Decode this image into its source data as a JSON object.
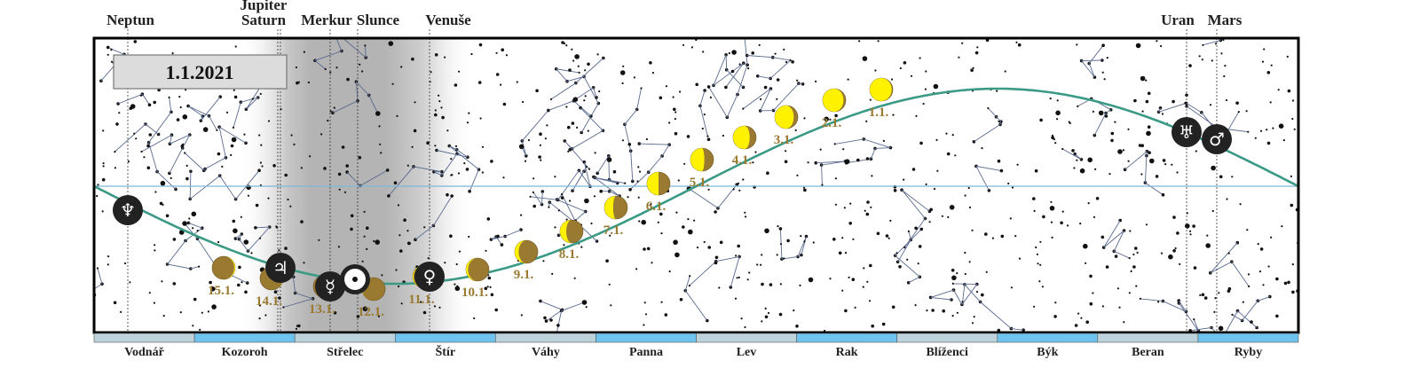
{
  "date_label": "1.1.2021",
  "colors": {
    "ecliptic": "#3a9a86",
    "equator": "#7fb6d6",
    "moon_lit": "#fff200",
    "moon_dark": "#9a7a30",
    "zodiac_light": "#bcd3dc",
    "zodiac_blue": "#6fc3ef",
    "planet_disc": "#222222"
  },
  "planets": [
    {
      "name": "Neptun",
      "symbol": "♆",
      "icon": "neptune-icon"
    },
    {
      "name": "Saturn",
      "symbol": "",
      "icon": "saturn-marker"
    },
    {
      "name": "Jupiter",
      "symbol": "♃",
      "icon": "jupiter-icon"
    },
    {
      "name": "Merkur",
      "symbol": "☿",
      "icon": "mercury-icon"
    },
    {
      "name": "Slunce",
      "symbol": "☉",
      "icon": "sun-icon"
    },
    {
      "name": "Venuše",
      "symbol": "♀",
      "icon": "venus-icon"
    },
    {
      "name": "Uran",
      "symbol": "♅",
      "icon": "uranus-icon"
    },
    {
      "name": "Mars",
      "symbol": "♂",
      "icon": "mars-icon"
    }
  ],
  "moon": [
    {
      "date": "1.1.",
      "illuminated": 0.95,
      "lit_side": "left"
    },
    {
      "date": "2.1.",
      "illuminated": 0.9,
      "lit_side": "left"
    },
    {
      "date": "3.1.",
      "illuminated": 0.82,
      "lit_side": "left"
    },
    {
      "date": "4.1.",
      "illuminated": 0.72,
      "lit_side": "left"
    },
    {
      "date": "5.1.",
      "illuminated": 0.6,
      "lit_side": "left"
    },
    {
      "date": "6.1.",
      "illuminated": 0.5,
      "lit_side": "left"
    },
    {
      "date": "7.1.",
      "illuminated": 0.38,
      "lit_side": "left"
    },
    {
      "date": "8.1.",
      "illuminated": 0.27,
      "lit_side": "left"
    },
    {
      "date": "9.1.",
      "illuminated": 0.17,
      "lit_side": "left"
    },
    {
      "date": "10.1.",
      "illuminated": 0.09,
      "lit_side": "left"
    },
    {
      "date": "11.1.",
      "illuminated": 0.04,
      "lit_side": "left"
    },
    {
      "date": "12.1.",
      "illuminated": 0.01,
      "lit_side": "left"
    },
    {
      "date": "13.1.",
      "illuminated": 0.0,
      "lit_side": "left"
    },
    {
      "date": "14.1.",
      "illuminated": 0.01,
      "lit_side": "right"
    },
    {
      "date": "15.1.",
      "illuminated": 0.04,
      "lit_side": "right"
    }
  ],
  "zodiac": [
    "Vodnář",
    "Kozoroh",
    "Střelec",
    "Štír",
    "Váhy",
    "Panna",
    "Lev",
    "Rak",
    "Blíženci",
    "Býk",
    "Beran",
    "Ryby"
  ]
}
